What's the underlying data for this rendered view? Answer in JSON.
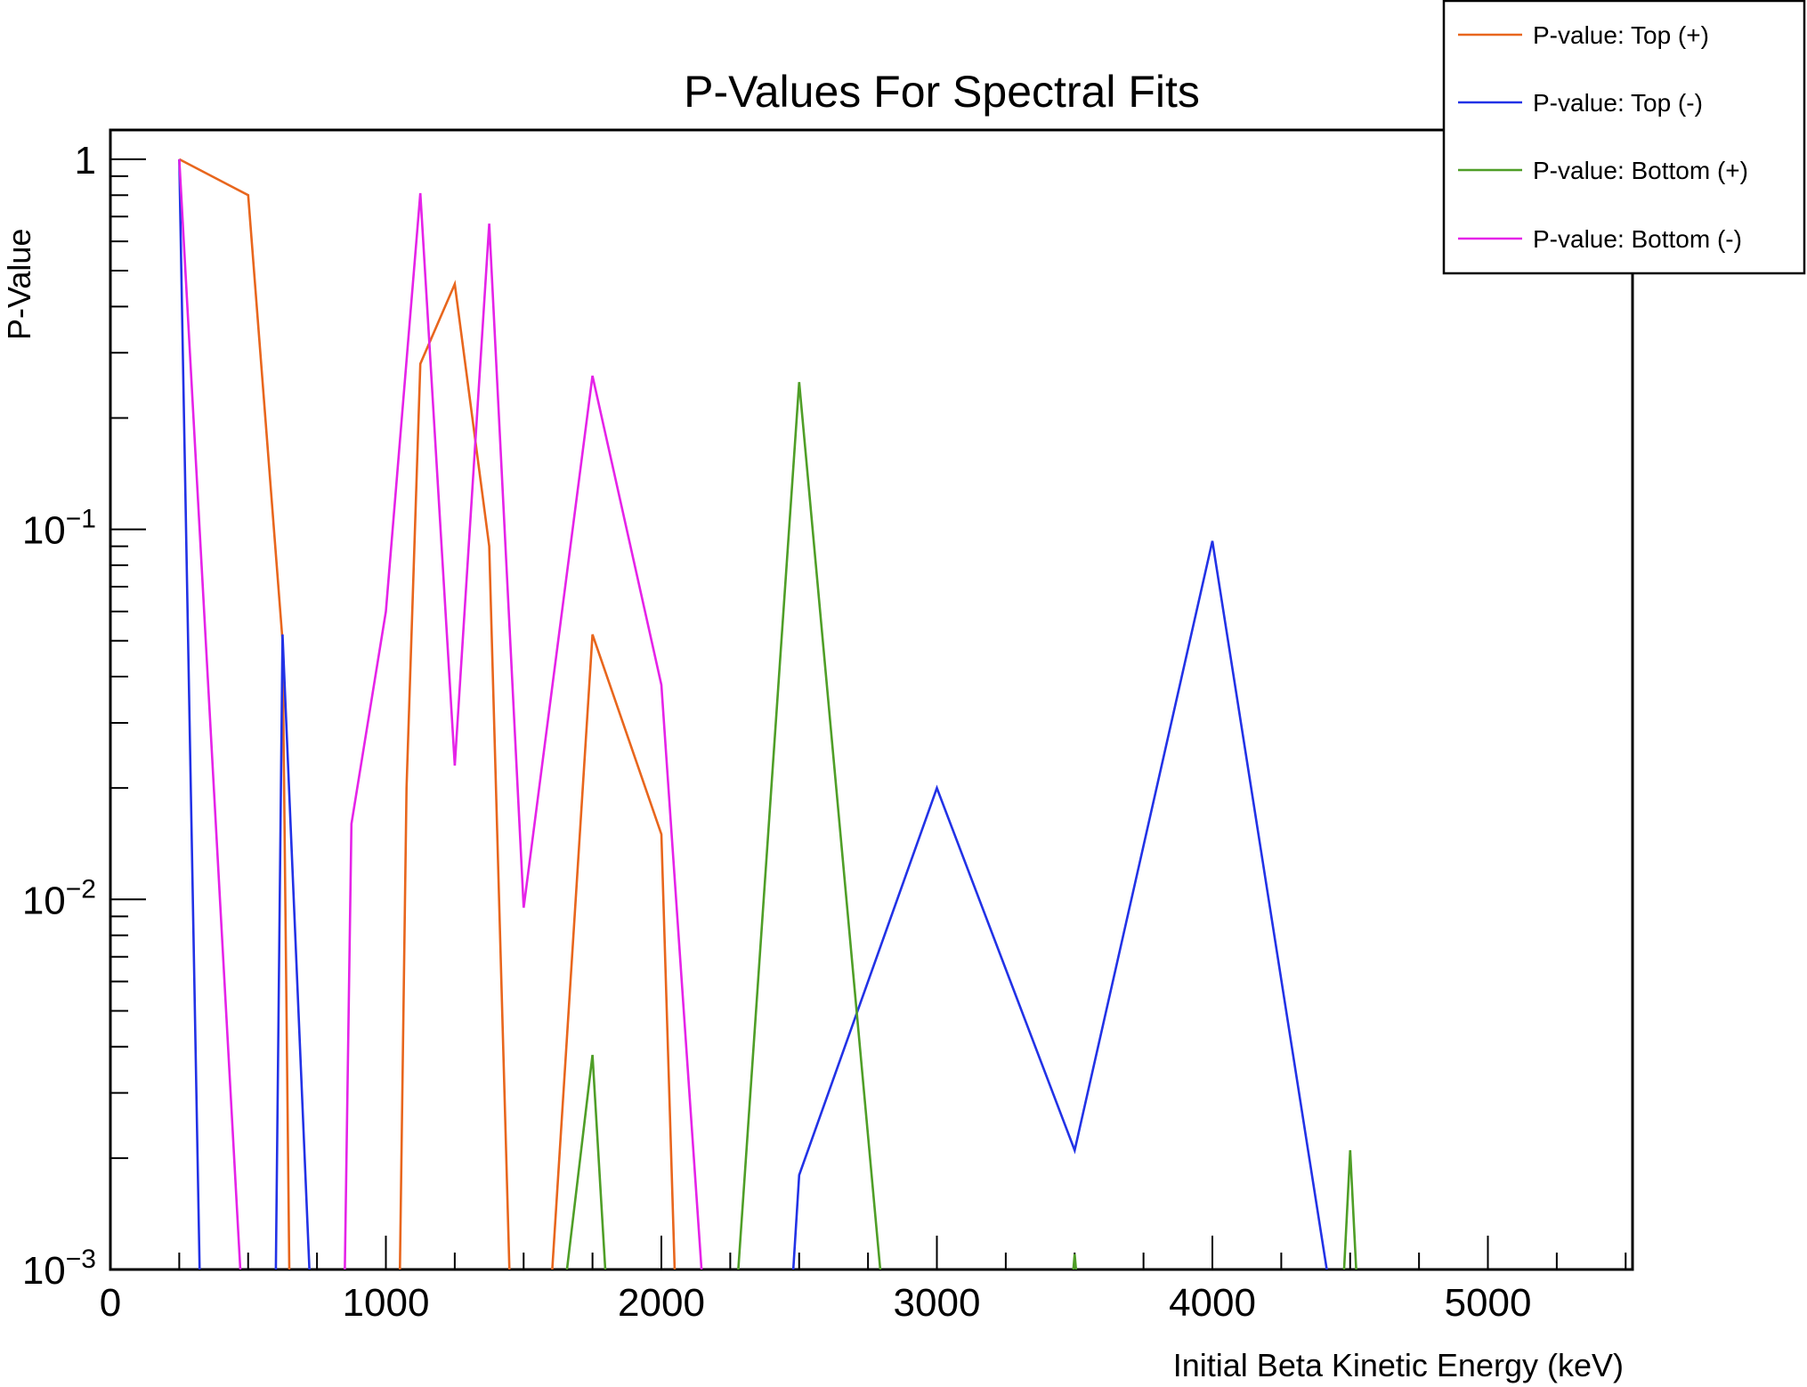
{
  "chart_data": {
    "type": "line",
    "title": "P-Values For Spectral Fits",
    "xlabel": "Initial Beta Kinetic Energy (keV)",
    "ylabel": "P-Value",
    "xlim": [
      0,
      5525
    ],
    "ylim": [
      0.001,
      1.2
    ],
    "yscale": "log",
    "grid": false,
    "legend_position": "top-right",
    "x_ticks": [
      0,
      1000,
      2000,
      3000,
      4000,
      5000
    ],
    "x_tick_labels": [
      "0",
      "1000",
      "2000",
      "3000",
      "4000",
      "5000"
    ],
    "y_ticks": [
      {
        "value": 1,
        "base": "1",
        "exp": ""
      },
      {
        "value": 0.1,
        "base": "10",
        "exp": "−1"
      },
      {
        "value": 0.01,
        "base": "10",
        "exp": "−2"
      },
      {
        "value": 0.001,
        "base": "10",
        "exp": "−3"
      }
    ],
    "series": [
      {
        "name": "P-value:  Top (+)",
        "color": "#e8661d",
        "points": [
          [
            250,
            1.0
          ],
          [
            500,
            0.8
          ],
          [
            625,
            0.05
          ],
          [
            650,
            0.0009
          ],
          [
            1050,
            0.0009
          ],
          [
            1075,
            0.02
          ],
          [
            1125,
            0.28
          ],
          [
            1250,
            0.46
          ],
          [
            1375,
            0.09
          ],
          [
            1450,
            0.0009
          ],
          [
            1600,
            0.0009
          ],
          [
            1750,
            0.052
          ],
          [
            2000,
            0.015
          ],
          [
            2050,
            0.0009
          ]
        ]
      },
      {
        "name": "P-value:  Top (-)",
        "color": "#2232e6",
        "points": [
          [
            250,
            1.0
          ],
          [
            325,
            0.0009
          ],
          [
            600,
            0.0009
          ],
          [
            625,
            0.052
          ],
          [
            725,
            0.0009
          ],
          [
            2475,
            0.0009
          ],
          [
            2500,
            0.0018
          ],
          [
            3000,
            0.02
          ],
          [
            3500,
            0.0021
          ],
          [
            4000,
            0.093
          ],
          [
            4425,
            0.0009
          ]
        ]
      },
      {
        "name": "P-value:  Bottom (+)",
        "color": "#4f9e27",
        "points": [
          [
            1650,
            0.0009
          ],
          [
            1750,
            0.0038
          ],
          [
            1800,
            0.0009
          ],
          [
            2275,
            0.0009
          ],
          [
            2500,
            0.25
          ],
          [
            2800,
            0.0009
          ],
          [
            3490,
            0.0009
          ],
          [
            3500,
            0.0011
          ],
          [
            3510,
            0.0009
          ],
          [
            4475,
            0.0009
          ],
          [
            4500,
            0.0021
          ],
          [
            4525,
            0.0009
          ]
        ]
      },
      {
        "name": "P-value:  Bottom (-)",
        "color": "#e523e8",
        "points": [
          [
            250,
            1.0
          ],
          [
            475,
            0.0009
          ],
          [
            850,
            0.0009
          ],
          [
            875,
            0.016
          ],
          [
            1000,
            0.06
          ],
          [
            1125,
            0.81
          ],
          [
            1250,
            0.023
          ],
          [
            1375,
            0.67
          ],
          [
            1500,
            0.0095
          ],
          [
            1750,
            0.26
          ],
          [
            2000,
            0.038
          ],
          [
            2150,
            0.0009
          ]
        ]
      }
    ]
  }
}
